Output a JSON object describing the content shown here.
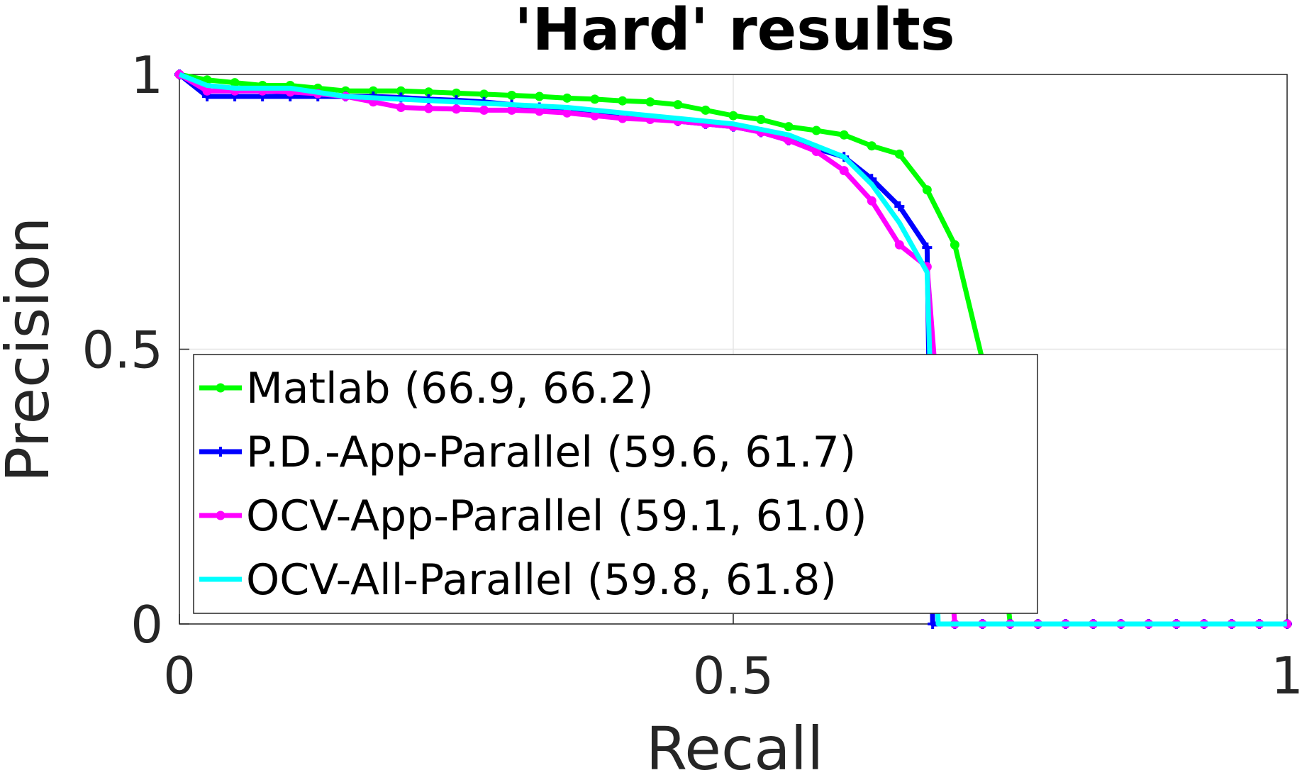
{
  "chart_data": {
    "type": "line",
    "title": "'Hard' results",
    "xlabel": "Recall",
    "ylabel": "Precision",
    "xlim": [
      0,
      1
    ],
    "ylim": [
      0,
      1
    ],
    "xticks": [
      "0",
      "0.5",
      "1"
    ],
    "yticks": [
      "0",
      "0.5",
      "1"
    ],
    "grid": true,
    "legend_position": "bottom-left",
    "series": [
      {
        "name": "Matlab (66.9, 66.2)",
        "color": "#00ff00",
        "marker": "dot",
        "x": [
          0,
          0.025,
          0.05,
          0.075,
          0.1,
          0.125,
          0.15,
          0.175,
          0.2,
          0.225,
          0.25,
          0.275,
          0.3,
          0.325,
          0.35,
          0.375,
          0.4,
          0.425,
          0.45,
          0.475,
          0.5,
          0.525,
          0.55,
          0.575,
          0.6,
          0.625,
          0.65,
          0.675,
          0.7,
          0.725,
          0.75,
          0.775,
          0.8,
          0.825,
          0.85,
          0.875,
          0.9,
          0.925,
          0.95,
          0.975,
          1
        ],
        "y": [
          1,
          0.99,
          0.985,
          0.98,
          0.98,
          0.975,
          0.97,
          0.97,
          0.97,
          0.968,
          0.966,
          0.964,
          0.962,
          0.96,
          0.957,
          0.955,
          0.952,
          0.95,
          0.945,
          0.935,
          0.925,
          0.918,
          0.905,
          0.898,
          0.89,
          0.87,
          0.855,
          0.79,
          0.69,
          0.48,
          0,
          0,
          0,
          0,
          0,
          0,
          0,
          0,
          0,
          0,
          0
        ]
      },
      {
        "name": "P.D.-App-Parallel (59.6, 61.7)",
        "color": "#0000ff",
        "marker": "plus",
        "x": [
          0,
          0.025,
          0.05,
          0.075,
          0.1,
          0.125,
          0.15,
          0.175,
          0.2,
          0.225,
          0.25,
          0.275,
          0.3,
          0.325,
          0.35,
          0.375,
          0.4,
          0.425,
          0.45,
          0.475,
          0.5,
          0.525,
          0.55,
          0.575,
          0.6,
          0.625,
          0.65,
          0.675,
          0.68,
          0.7,
          0.725,
          0.75,
          0.775,
          0.8,
          0.825,
          0.85,
          0.875,
          0.9,
          0.925,
          0.95,
          0.975,
          1
        ],
        "y": [
          1,
          0.96,
          0.96,
          0.96,
          0.96,
          0.96,
          0.96,
          0.96,
          0.958,
          0.955,
          0.953,
          0.95,
          0.945,
          0.94,
          0.935,
          0.93,
          0.925,
          0.92,
          0.915,
          0.91,
          0.905,
          0.895,
          0.88,
          0.865,
          0.85,
          0.81,
          0.76,
          0.685,
          0.0,
          0,
          0,
          0,
          0,
          0,
          0,
          0,
          0,
          0,
          0,
          0,
          0,
          0
        ]
      },
      {
        "name": "OCV-App-Parallel (59.1, 61.0)",
        "color": "#ff00ff",
        "marker": "dot",
        "x": [
          0,
          0.025,
          0.05,
          0.075,
          0.1,
          0.125,
          0.15,
          0.175,
          0.2,
          0.225,
          0.25,
          0.275,
          0.3,
          0.325,
          0.35,
          0.375,
          0.4,
          0.425,
          0.45,
          0.475,
          0.5,
          0.525,
          0.55,
          0.575,
          0.6,
          0.625,
          0.65,
          0.675,
          0.7,
          0.725,
          0.75,
          0.775,
          0.8,
          0.825,
          0.85,
          0.875,
          0.9,
          0.925,
          0.95,
          0.975,
          1
        ],
        "y": [
          1,
          0.97,
          0.97,
          0.97,
          0.968,
          0.965,
          0.96,
          0.95,
          0.94,
          0.938,
          0.937,
          0.935,
          0.935,
          0.933,
          0.93,
          0.925,
          0.92,
          0.918,
          0.915,
          0.91,
          0.905,
          0.895,
          0.88,
          0.86,
          0.825,
          0.77,
          0.69,
          0.65,
          0,
          0,
          0,
          0,
          0,
          0,
          0,
          0,
          0,
          0,
          0,
          0,
          0
        ]
      },
      {
        "name": "OCV-All-Parallel (59.8, 61.8)",
        "color": "#00ffff",
        "marker": "none",
        "x": [
          0,
          0.025,
          0.05,
          0.075,
          0.1,
          0.15,
          0.2,
          0.25,
          0.3,
          0.35,
          0.4,
          0.45,
          0.5,
          0.55,
          0.6,
          0.625,
          0.65,
          0.675,
          0.685,
          0.7,
          0.75,
          0.8,
          0.85,
          0.9,
          0.95,
          1
        ],
        "y": [
          1,
          0.98,
          0.975,
          0.975,
          0.975,
          0.96,
          0.955,
          0.95,
          0.945,
          0.94,
          0.93,
          0.92,
          0.91,
          0.89,
          0.85,
          0.8,
          0.73,
          0.64,
          0.0,
          0,
          0,
          0,
          0,
          0,
          0,
          0
        ]
      }
    ]
  }
}
